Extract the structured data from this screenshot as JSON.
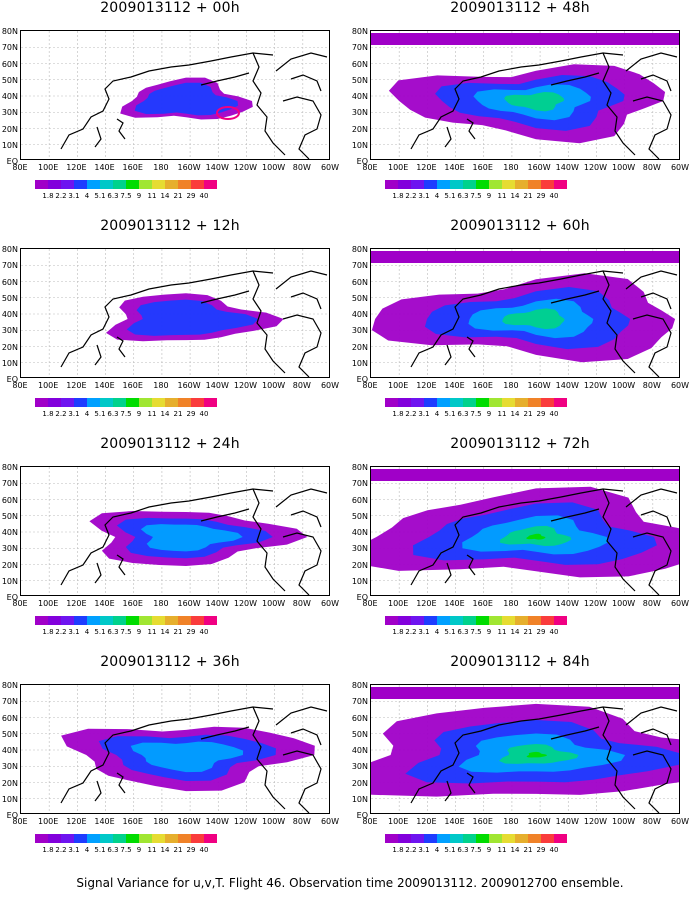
{
  "figure": {
    "caption": "Signal Variance for u,v,T. Flight 46. Observation time 2009013112. 2009012700 ensemble."
  },
  "axes": {
    "lat_labels": [
      "80N",
      "70N",
      "60N",
      "50N",
      "40N",
      "30N",
      "20N",
      "10N",
      "EQ"
    ],
    "lon_labels": [
      "80E",
      "100E",
      "120E",
      "140E",
      "160E",
      "180",
      "160W",
      "140W",
      "120W",
      "100W",
      "80W",
      "60W"
    ]
  },
  "colorbar": {
    "levels": [
      "1.8",
      "2.2",
      "3.1",
      "4",
      "5.1",
      "6.3",
      "7.5",
      "9",
      "11",
      "14",
      "21",
      "29",
      "40"
    ],
    "colors": [
      "#a000c8",
      "#8200dc",
      "#6e14f0",
      "#1e3cff",
      "#00a0ff",
      "#00c8c8",
      "#00d28c",
      "#00dc00",
      "#a0e632",
      "#e6dc32",
      "#e6af2d",
      "#f08228",
      "#fa3c3c",
      "#f00082"
    ]
  },
  "panels": [
    {
      "title": "2009013112 + 00h",
      "level": 0
    },
    {
      "title": "2009013112 + 12h",
      "level": 1
    },
    {
      "title": "2009013112 + 24h",
      "level": 2
    },
    {
      "title": "2009013112 + 36h",
      "level": 3
    },
    {
      "title": "2009013112 + 48h",
      "level": 4
    },
    {
      "title": "2009013112 + 60h",
      "level": 5
    },
    {
      "title": "2009013112 + 72h",
      "level": 6
    },
    {
      "title": "2009013112 + 84h",
      "level": 7
    }
  ]
}
